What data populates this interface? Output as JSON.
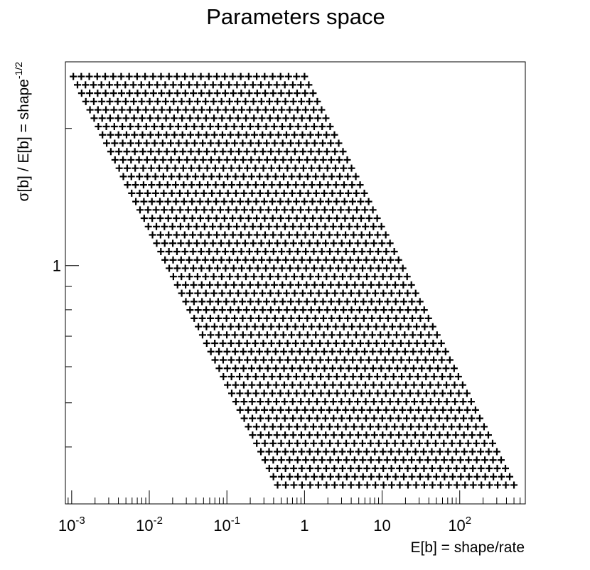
{
  "chart_data": {
    "type": "scatter",
    "title": "Parameters space",
    "xlabel": "E[b] = shape/rate",
    "ylabel": "σ[b] / E[b] = shape",
    "ylabel_sup": "-1/2",
    "x_scale": "log",
    "y_scale": "log",
    "xlim": [
      0.00083,
      700
    ],
    "ylim": [
      0.3,
      2.8
    ],
    "grid": false,
    "marker": "+",
    "x_tick_labels": [
      {
        "base": "10",
        "exp": "-3",
        "value": 0.001
      },
      {
        "base": "10",
        "exp": "-2",
        "value": 0.01
      },
      {
        "base": "10",
        "exp": "-1",
        "value": 0.1
      },
      {
        "base": "1",
        "exp": "",
        "value": 1
      },
      {
        "base": "10",
        "exp": "",
        "value": 10
      },
      {
        "base": "10",
        "exp": "2",
        "value": 100
      }
    ],
    "y_tick_labels": [
      {
        "text": "1",
        "value": 1
      }
    ],
    "series": [
      {
        "rows": 50,
        "points_per_row": 30,
        "y_range": [
          0.33,
          2.6
        ],
        "row0_x_range": [
          0.00105,
          1.0
        ],
        "row_last_x_range": [
          0.45,
          500
        ]
      }
    ]
  }
}
